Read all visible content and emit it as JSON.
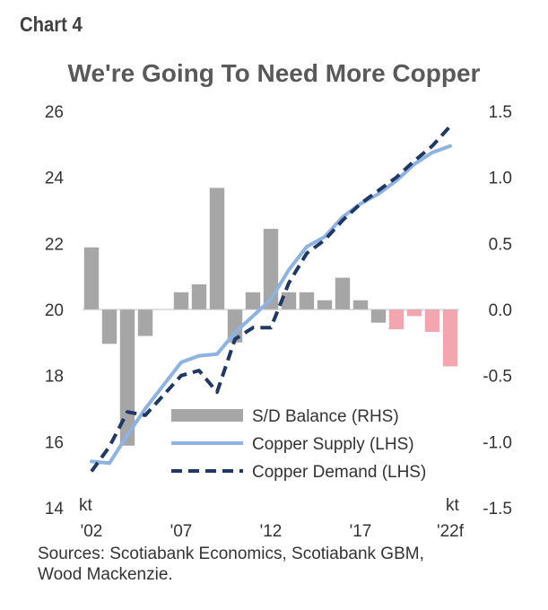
{
  "chart_label": "Chart 4",
  "chart_data": {
    "type": "bar+line",
    "title": "We're Going To Need More Copper",
    "x": [
      "'02",
      "'03",
      "'04",
      "'05",
      "'06",
      "'07",
      "'08",
      "'09",
      "'10",
      "'11",
      "'12",
      "'13",
      "'14",
      "'15",
      "'16",
      "'17",
      "'18",
      "'19",
      "'20",
      "'21",
      "'22f"
    ],
    "x_tick_labels": [
      "'02",
      "'07",
      "'12",
      "'17",
      "'22f"
    ],
    "y_left": {
      "unit": "kt",
      "lim": [
        14,
        26
      ],
      "ticks": [
        "14",
        "16",
        "18",
        "20",
        "22",
        "24",
        "26"
      ]
    },
    "y_right": {
      "unit": "kt",
      "lim": [
        -1.5,
        1.5
      ],
      "ticks": [
        "-1.5",
        "-1.0",
        "-0.5",
        "0.0",
        "0.5",
        "1.0",
        "1.5"
      ]
    },
    "series": [
      {
        "name": "S/D Balance (RHS)",
        "axis": "right",
        "kind": "bar",
        "values": [
          0.47,
          -0.26,
          -1.03,
          -0.2,
          0.0,
          0.13,
          0.19,
          0.92,
          -0.25,
          0.13,
          0.61,
          0.13,
          0.13,
          0.07,
          0.24,
          0.07,
          -0.1,
          -0.15,
          -0.05,
          -0.17,
          -0.43
        ],
        "colors": {
          "historical": "#a6a6a6",
          "forecast": "#f4a6b0"
        },
        "forecast_from": "'19"
      },
      {
        "name": "Copper Supply (LHS)",
        "axis": "left",
        "kind": "line",
        "color": "#8db3e2",
        "values": [
          15.4,
          15.35,
          16.2,
          17.0,
          17.7,
          18.4,
          18.6,
          18.65,
          19.3,
          19.8,
          20.3,
          21.2,
          21.9,
          22.2,
          22.8,
          23.2,
          23.5,
          23.9,
          24.4,
          24.75,
          24.95
        ]
      },
      {
        "name": "Copper Demand (LHS)",
        "axis": "left",
        "kind": "line",
        "style": "dashed",
        "color": "#1f3864",
        "values": [
          15.1,
          15.85,
          16.9,
          16.8,
          17.4,
          18.0,
          18.15,
          17.5,
          19.1,
          19.45,
          19.45,
          20.8,
          21.7,
          22.1,
          22.7,
          23.2,
          23.6,
          24.0,
          24.5,
          24.95,
          25.55
        ]
      }
    ]
  },
  "source_lines": [
    "Sources: Scotiabank Economics, Scotiabank GBM,",
    "Wood Mackenzie."
  ]
}
